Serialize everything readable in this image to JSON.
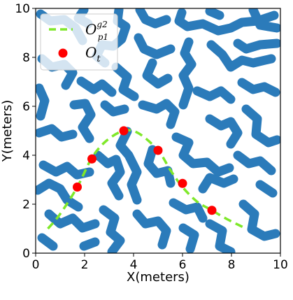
{
  "chart_data": {
    "type": "scatter",
    "xlabel": "X(meters)",
    "ylabel": "Y(meters)",
    "xlim": [
      0,
      10
    ],
    "ylim": [
      0,
      10
    ],
    "xticks": [
      "0",
      "2",
      "4",
      "6",
      "8",
      "10"
    ],
    "yticks": [
      "0",
      "2",
      "4",
      "6",
      "8",
      "10"
    ],
    "grid": false,
    "legend_position": "top-left",
    "background_pattern": "random blue obstacle blobs on white (occupancy map)",
    "series": [
      {
        "name": "O",
        "name_sup": "g2",
        "name_sub": "p1",
        "style": "dashed-line",
        "color": "#7fe82a",
        "x": [
          0.5,
          1.0,
          1.7,
          2.3,
          2.9,
          3.6,
          4.2,
          5.0,
          5.5,
          6.0,
          6.6,
          7.2,
          7.8,
          8.5
        ],
        "y": [
          1.0,
          1.6,
          2.7,
          3.9,
          4.6,
          5.0,
          4.9,
          4.2,
          3.4,
          2.7,
          2.1,
          1.75,
          1.4,
          1.05
        ]
      },
      {
        "name": "O",
        "name_sub": "t",
        "style": "markers",
        "color": "#ff0000",
        "x": [
          1.7,
          2.3,
          3.6,
          5.0,
          6.0,
          7.2
        ],
        "y": [
          2.7,
          3.85,
          5.0,
          4.2,
          2.85,
          1.75
        ]
      }
    ],
    "colors": {
      "obstacle": "#2b7bba",
      "free": "#ffffff"
    }
  }
}
